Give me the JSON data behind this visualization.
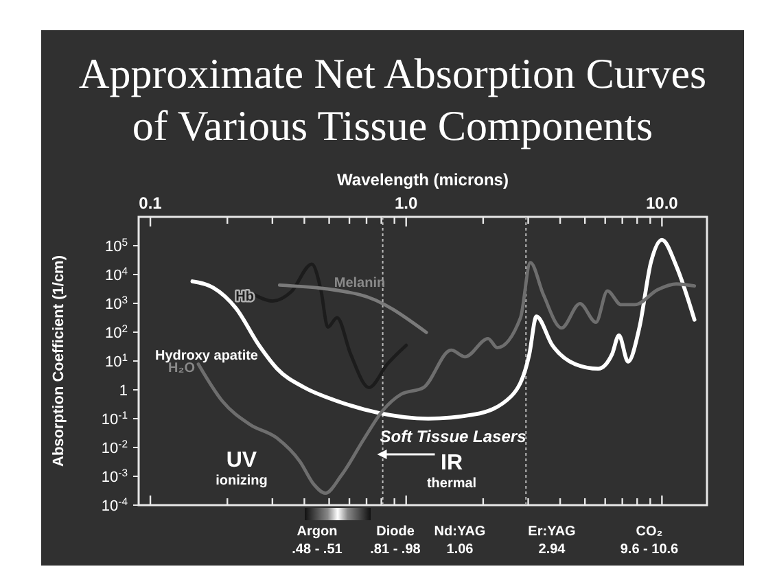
{
  "chart_data": {
    "type": "line",
    "title": "Approximate Net Absorption Curves of Various Tissue Components",
    "xlabel": "Wavelength (microns)",
    "ylabel": "Absorption Coefficient (1/cm)",
    "log": "xy",
    "xlim": [
      0.09,
      15
    ],
    "ylim": [
      0.0001,
      1000000
    ],
    "xticks": [
      0.1,
      {
        "value": 0.2,
        "label": null
      },
      {
        "value": 0.3,
        "label": null
      },
      {
        "value": 0.4,
        "label": null
      },
      {
        "value": 0.5,
        "label": null
      },
      {
        "value": 0.6,
        "label": null
      },
      {
        "value": 0.7,
        "label": null
      },
      {
        "value": 0.8,
        "label": null
      },
      {
        "value": 0.9,
        "label": null
      },
      {
        "value": 1,
        "label": "1.0"
      },
      {
        "value": 2,
        "label": null
      },
      {
        "value": 3,
        "label": null
      },
      {
        "value": 4,
        "label": null
      },
      {
        "value": 5,
        "label": null
      },
      {
        "value": 6,
        "label": null
      },
      {
        "value": 7,
        "label": null
      },
      {
        "value": 8,
        "label": null
      },
      {
        "value": 9,
        "label": null
      },
      {
        "value": 10,
        "label": "10.0"
      }
    ],
    "yticks": [
      {
        "value": 0.0001,
        "label": "10$^{-4}$"
      },
      {
        "value": 0.001,
        "label": "10$^{-3}$"
      },
      {
        "value": 0.01,
        "label": "10$^{-2}$"
      },
      {
        "value": 0.1,
        "label": "10$^{-1}$"
      },
      1,
      {
        "value": 10,
        "label": "10$^{1}$"
      },
      {
        "value": 100,
        "label": "10$^{2}$"
      },
      {
        "value": 1000,
        "label": "10$^{3}$"
      },
      {
        "value": 10000,
        "label": "10$^{4}$"
      },
      {
        "value": 100000,
        "label": "10$^{5}$"
      }
    ],
    "grid": false,
    "marker": "none",
    "series": [
      {
        "name": "Hydroxy apatite",
        "color": "#ffffff",
        "x": [
          0.146,
          0.176,
          0.216,
          0.266,
          0.313,
          0.4,
          0.537,
          0.778,
          1.22,
          1.85,
          2.57,
          3.03,
          3.23,
          3.73,
          4.58,
          5.64,
          6.38,
          6.79,
          7.37,
          8.17,
          9.06,
          10,
          11.4,
          13.4
        ],
        "values": [
          5800,
          3500,
          680,
          35,
          5.4,
          1.2,
          0.41,
          0.16,
          0.1,
          0.14,
          0.59,
          17,
          350,
          35,
          7.8,
          5.4,
          17,
          78,
          9.5,
          150,
          27000,
          160000,
          19000,
          270
        ]
      },
      {
        "name": "H₂O",
        "color": "#6e6e6e",
        "x": [
          0.154,
          0.191,
          0.245,
          0.313,
          0.385,
          0.436,
          0.483,
          0.559,
          0.687,
          0.81,
          0.955,
          1.17,
          1.5,
          1.7,
          2.09,
          2.27,
          2.8,
          3.06,
          3.44,
          4.05,
          4.78,
          5.52,
          6.12,
          6.92,
          7.84,
          9.64,
          11.4,
          13.4
        ],
        "values": [
          7.8,
          0.41,
          0.063,
          0.021,
          0.0032,
          0.00052,
          0.00026,
          0.0011,
          0.021,
          0.19,
          0.7,
          1.2,
          24,
          14,
          60,
          29,
          320,
          26000,
          2000,
          140,
          980,
          220,
          2700,
          900,
          900,
          3000,
          4700,
          4000
        ]
      },
      {
        "name": "Hb",
        "color": "#1c1c1c",
        "x": [
          0.255,
          0.301,
          0.355,
          0.428,
          0.464,
          0.494,
          0.537,
          0.607,
          0.716,
          0.844,
          1.0
        ],
        "values": [
          2000,
          1200,
          2500,
          23000,
          3000,
          150,
          320,
          17,
          1.2,
          7.8,
          35
        ]
      },
      {
        "name": "Melanin",
        "color": "#7a7a7a",
        "x": [
          0.32,
          0.659,
          1.2
        ],
        "values": [
          4300,
          2000,
          98
        ]
      }
    ],
    "ref_lines": [
      {
        "axis": "x",
        "value": 0.81,
        "line_style": "dotted",
        "color": "#bbbbbb"
      },
      {
        "axis": "x",
        "value": 2.94,
        "line_style": "dotted",
        "color": "#bbbbbb"
      }
    ],
    "annotations": [
      "UV\nionizing",
      "Soft Tissue Lasers",
      "IR\nthermal",
      "Argon\n.48 - .51",
      "Diode\n.81 - .98",
      "Nd:YAG\n1.06",
      "Er:YAG\n2.94",
      "CO₂\n9.6 - 10.6"
    ]
  }
}
